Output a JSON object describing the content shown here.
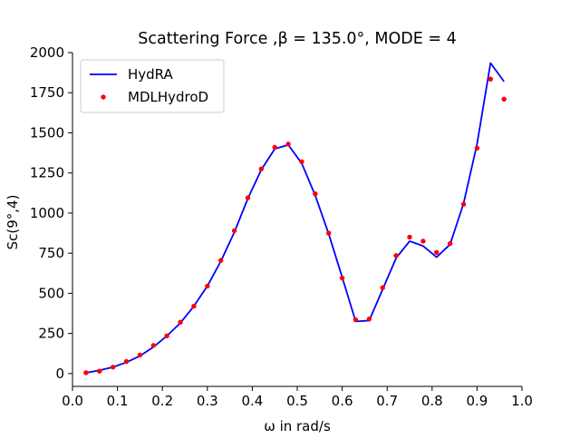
{
  "chart_data": {
    "type": "line",
    "title": "Scattering Force ,β = 135.0°, MODE = 4",
    "xlabel": "ω in rad/s",
    "ylabel": "Sc(9°,4)",
    "xlim": [
      0.0,
      1.0
    ],
    "ylim": [
      -80,
      2000
    ],
    "xticks": [
      "0.0",
      "0.1",
      "0.2",
      "0.3",
      "0.4",
      "0.5",
      "0.6",
      "0.7",
      "0.8",
      "0.9",
      "1.0"
    ],
    "yticks": [
      "0",
      "250",
      "500",
      "750",
      "1000",
      "1250",
      "1500",
      "1750",
      "2000"
    ],
    "grid": false,
    "legend_position": "upper-left",
    "series": [
      {
        "name": "HydRA",
        "style": "line",
        "color": "#0000ff",
        "x": [
          0.03,
          0.06,
          0.09,
          0.12,
          0.15,
          0.18,
          0.21,
          0.24,
          0.27,
          0.3,
          0.33,
          0.36,
          0.39,
          0.42,
          0.45,
          0.48,
          0.51,
          0.54,
          0.57,
          0.6,
          0.63,
          0.66,
          0.69,
          0.72,
          0.75,
          0.78,
          0.81,
          0.84,
          0.87,
          0.9,
          0.93,
          0.96
        ],
        "y": [
          5,
          20,
          40,
          70,
          110,
          165,
          235,
          315,
          420,
          545,
          700,
          880,
          1090,
          1270,
          1400,
          1425,
          1310,
          1110,
          870,
          600,
          325,
          330,
          525,
          720,
          825,
          795,
          725,
          805,
          1060,
          1430,
          1935,
          1820
        ]
      },
      {
        "name": "MDLHydroD",
        "style": "scatter",
        "color": "#ff0000",
        "x": [
          0.03,
          0.06,
          0.09,
          0.12,
          0.15,
          0.18,
          0.21,
          0.24,
          0.27,
          0.3,
          0.33,
          0.36,
          0.39,
          0.42,
          0.45,
          0.48,
          0.51,
          0.54,
          0.57,
          0.6,
          0.63,
          0.66,
          0.69,
          0.72,
          0.75,
          0.78,
          0.81,
          0.84,
          0.87,
          0.9,
          0.93,
          0.96
        ],
        "y": [
          5,
          15,
          40,
          75,
          115,
          175,
          235,
          320,
          420,
          545,
          705,
          890,
          1095,
          1275,
          1410,
          1430,
          1320,
          1120,
          875,
          595,
          335,
          340,
          535,
          735,
          850,
          825,
          755,
          810,
          1055,
          1405,
          1835,
          1710
        ]
      }
    ]
  }
}
